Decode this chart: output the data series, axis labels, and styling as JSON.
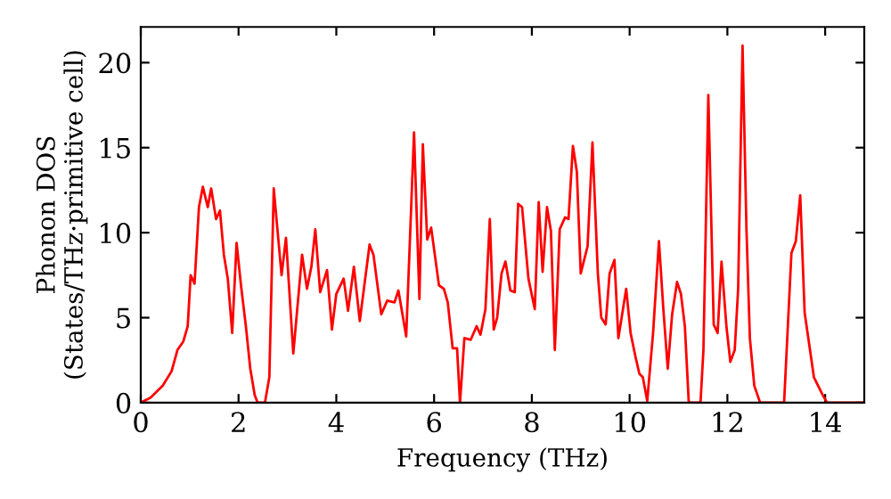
{
  "chart_data": {
    "type": "line",
    "xlabel": "Frequency (THz)",
    "ylabel": "Phonon DOS\n(States/THz·primitive cell)",
    "series": [
      {
        "color": "#ff0000",
        "x": [
          0,
          0.2,
          0.45,
          0.63,
          0.75,
          0.87,
          0.96,
          1.02,
          1.1,
          1.19,
          1.27,
          1.37,
          1.44,
          1.54,
          1.62,
          1.7,
          1.78,
          1.87,
          1.96,
          2.05,
          2.15,
          2.24,
          2.33,
          2.39,
          2.54,
          2.63,
          2.72,
          2.88,
          2.97,
          3.12,
          3.3,
          3.4,
          3.49,
          3.57,
          3.67,
          3.81,
          3.91,
          4.0,
          4.15,
          4.24,
          4.36,
          4.48,
          4.68,
          4.76,
          4.92,
          5.04,
          5.19,
          5.27,
          5.43,
          5.59,
          5.7,
          5.77,
          5.86,
          5.94,
          6.1,
          6.2,
          6.28,
          6.38,
          6.47,
          6.53,
          6.62,
          6.75,
          6.87,
          6.95,
          7.05,
          7.14,
          7.22,
          7.29,
          7.38,
          7.46,
          7.56,
          7.65,
          7.72,
          7.8,
          7.93,
          8.06,
          8.14,
          8.22,
          8.31,
          8.39,
          8.47,
          8.57,
          8.68,
          8.75,
          8.84,
          8.92,
          9.0,
          9.14,
          9.24,
          9.35,
          9.42,
          9.51,
          9.59,
          9.69,
          9.77,
          9.93,
          10.02,
          10.12,
          10.2,
          10.27,
          10.36,
          10.48,
          10.6,
          10.69,
          10.78,
          10.87,
          10.97,
          11.05,
          11.13,
          11.21,
          11.45,
          11.51,
          11.61,
          11.72,
          11.8,
          11.88,
          11.98,
          12.06,
          12.15,
          12.22,
          12.31,
          12.39,
          12.46,
          12.55,
          12.67,
          13.16,
          13.31,
          13.4,
          13.49,
          13.58,
          13.77,
          13.95,
          14.04,
          14.8
        ],
        "values": [
          0,
          0.3,
          1.0,
          1.85,
          3.1,
          3.6,
          4.5,
          7.5,
          7.0,
          11.5,
          12.7,
          11.5,
          12.6,
          10.8,
          11.3,
          8.7,
          7.3,
          4.1,
          9.4,
          6.9,
          4.5,
          2.0,
          0.45,
          0,
          0,
          1.5,
          12.6,
          7.5,
          9.7,
          2.9,
          8.7,
          6.7,
          8.0,
          10.2,
          6.5,
          7.8,
          4.3,
          6.4,
          7.3,
          5.4,
          8.0,
          4.8,
          9.3,
          8.7,
          5.2,
          6.0,
          5.9,
          6.6,
          3.9,
          15.9,
          6.1,
          15.2,
          9.6,
          10.3,
          6.9,
          6.7,
          5.9,
          3.2,
          3.2,
          0,
          3.8,
          3.7,
          4.5,
          4.0,
          5.5,
          10.8,
          4.3,
          5.0,
          7.6,
          8.3,
          6.6,
          6.5,
          11.7,
          11.5,
          7.3,
          5.5,
          11.8,
          7.7,
          11.5,
          10.1,
          3.1,
          10.2,
          10.9,
          10.8,
          15.1,
          13.6,
          7.6,
          9.2,
          15.3,
          7.6,
          5.0,
          4.6,
          7.6,
          8.4,
          3.8,
          6.7,
          4.1,
          2.7,
          1.7,
          1.5,
          0.1,
          4.1,
          9.5,
          5.5,
          2.0,
          5.2,
          7.1,
          6.4,
          4.5,
          0,
          0,
          3.1,
          18.1,
          4.6,
          4.1,
          8.3,
          4.5,
          2.4,
          3.1,
          6.7,
          21.0,
          10.2,
          3.8,
          1.0,
          0,
          0,
          8.8,
          9.5,
          12.2,
          5.3,
          1.5,
          0.45,
          0,
          0
        ]
      }
    ],
    "xlim": [
      0,
      14.8
    ],
    "ylim": [
      0,
      22.1
    ],
    "xticks": [
      0,
      2,
      4,
      6,
      8,
      10,
      12,
      14
    ],
    "yticks": [
      0,
      5,
      10,
      15,
      20
    ],
    "grid": false,
    "legend": false,
    "marker": "none",
    "line_style": "solid"
  }
}
